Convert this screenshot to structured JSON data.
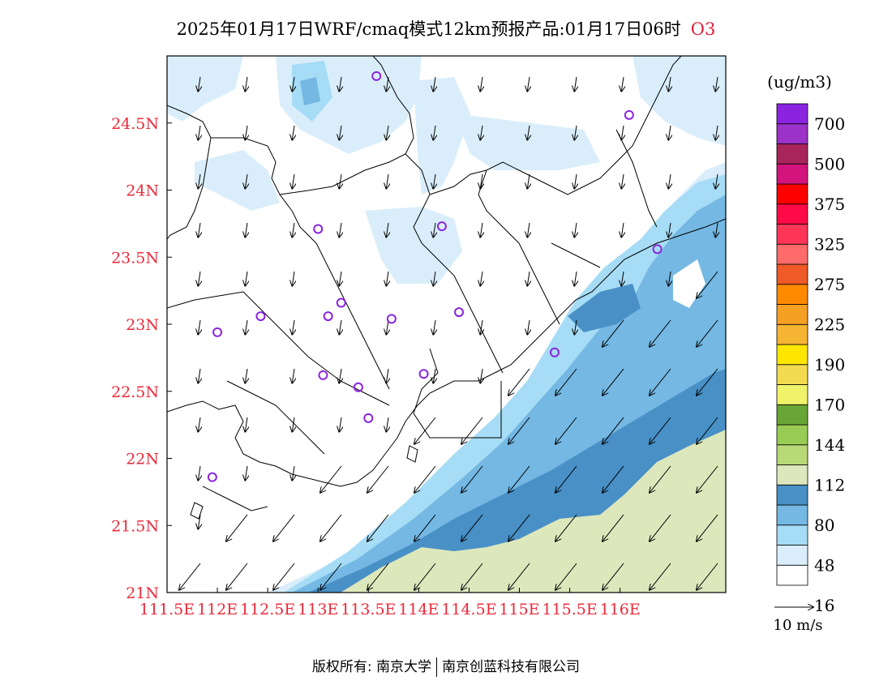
{
  "title": {
    "main": "2025年01月17日WRF/cmaq模式12km预报产品:01月17日06时",
    "species": "O3"
  },
  "axes": {
    "x_ticks": [
      "111.5E",
      "112E",
      "112.5E",
      "113E",
      "113.5E",
      "114E",
      "114.5E",
      "115E",
      "115.5E",
      "116E"
    ],
    "y_ticks": [
      "21N",
      "21.5N",
      "22N",
      "22.5N",
      "23N",
      "23.5N",
      "24N",
      "24.5N"
    ]
  },
  "colorbar": {
    "unit": "(ug/m3)",
    "levels": [
      "700",
      "500",
      "375",
      "325",
      "275",
      "225",
      "190",
      "170",
      "144",
      "112",
      "80",
      "48",
      "16"
    ],
    "colors": [
      "#ffffff",
      "#d9eefa",
      "#a6dcf5",
      "#74b8e3",
      "#4890c6",
      "#dde7bc",
      "#b9d878",
      "#99cc55",
      "#6aa636",
      "#f0f36a",
      "#f2db4f",
      "#ffe600",
      "#f5b432",
      "#f6a023",
      "#ff8a00",
      "#ef5a28",
      "#ff6a6a",
      "#ff3558",
      "#ff0a47",
      "#ff0000",
      "#d4147d",
      "#a8245a",
      "#9d32c8",
      "#8a24e0"
    ]
  },
  "wind_legend": {
    "label": "10 m/s"
  },
  "stations": [
    {
      "lon": 113.58,
      "lat": 24.85
    },
    {
      "lon": 116.09,
      "lat": 24.56
    },
    {
      "lon": 113.0,
      "lat": 23.71
    },
    {
      "lon": 114.23,
      "lat": 23.73
    },
    {
      "lon": 116.37,
      "lat": 23.56
    },
    {
      "lon": 113.23,
      "lat": 23.16
    },
    {
      "lon": 112.43,
      "lat": 23.06
    },
    {
      "lon": 113.1,
      "lat": 23.06
    },
    {
      "lon": 113.73,
      "lat": 23.04
    },
    {
      "lon": 114.4,
      "lat": 23.09
    },
    {
      "lon": 112.0,
      "lat": 22.94
    },
    {
      "lon": 115.35,
      "lat": 22.79
    },
    {
      "lon": 113.05,
      "lat": 22.62
    },
    {
      "lon": 114.05,
      "lat": 22.63
    },
    {
      "lon": 113.4,
      "lat": 22.53
    },
    {
      "lon": 113.5,
      "lat": 22.3
    },
    {
      "lon": 111.95,
      "lat": 21.86
    }
  ],
  "footer": {
    "left": "版权所有: 南京大学",
    "right": "南京创蓝科技有限公司"
  }
}
